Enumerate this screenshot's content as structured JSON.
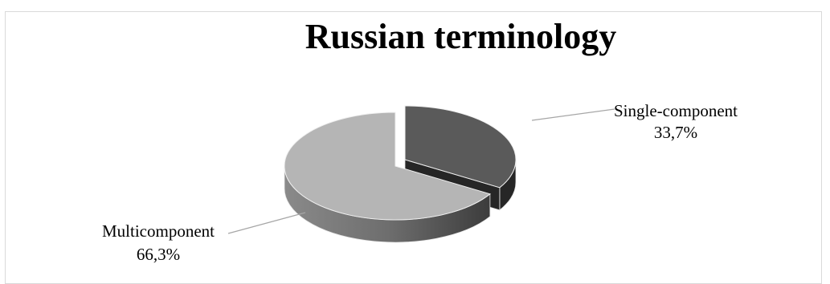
{
  "chart_data": {
    "type": "pie",
    "style": "3d-exploded",
    "title": "Russian terminology",
    "categories": [
      "Single-component",
      "Multicomponent"
    ],
    "values": [
      33.7,
      66.3
    ],
    "value_labels": [
      "33,7%",
      "66,3%"
    ],
    "colors": {
      "Single-component": {
        "top": "#5a5a5a",
        "side": "#262626"
      },
      "Multicomponent": {
        "top": "#b5b5b5",
        "side": "#7a7a7a"
      }
    },
    "legend": "none",
    "data_labels": "outside-with-leader-lines"
  }
}
